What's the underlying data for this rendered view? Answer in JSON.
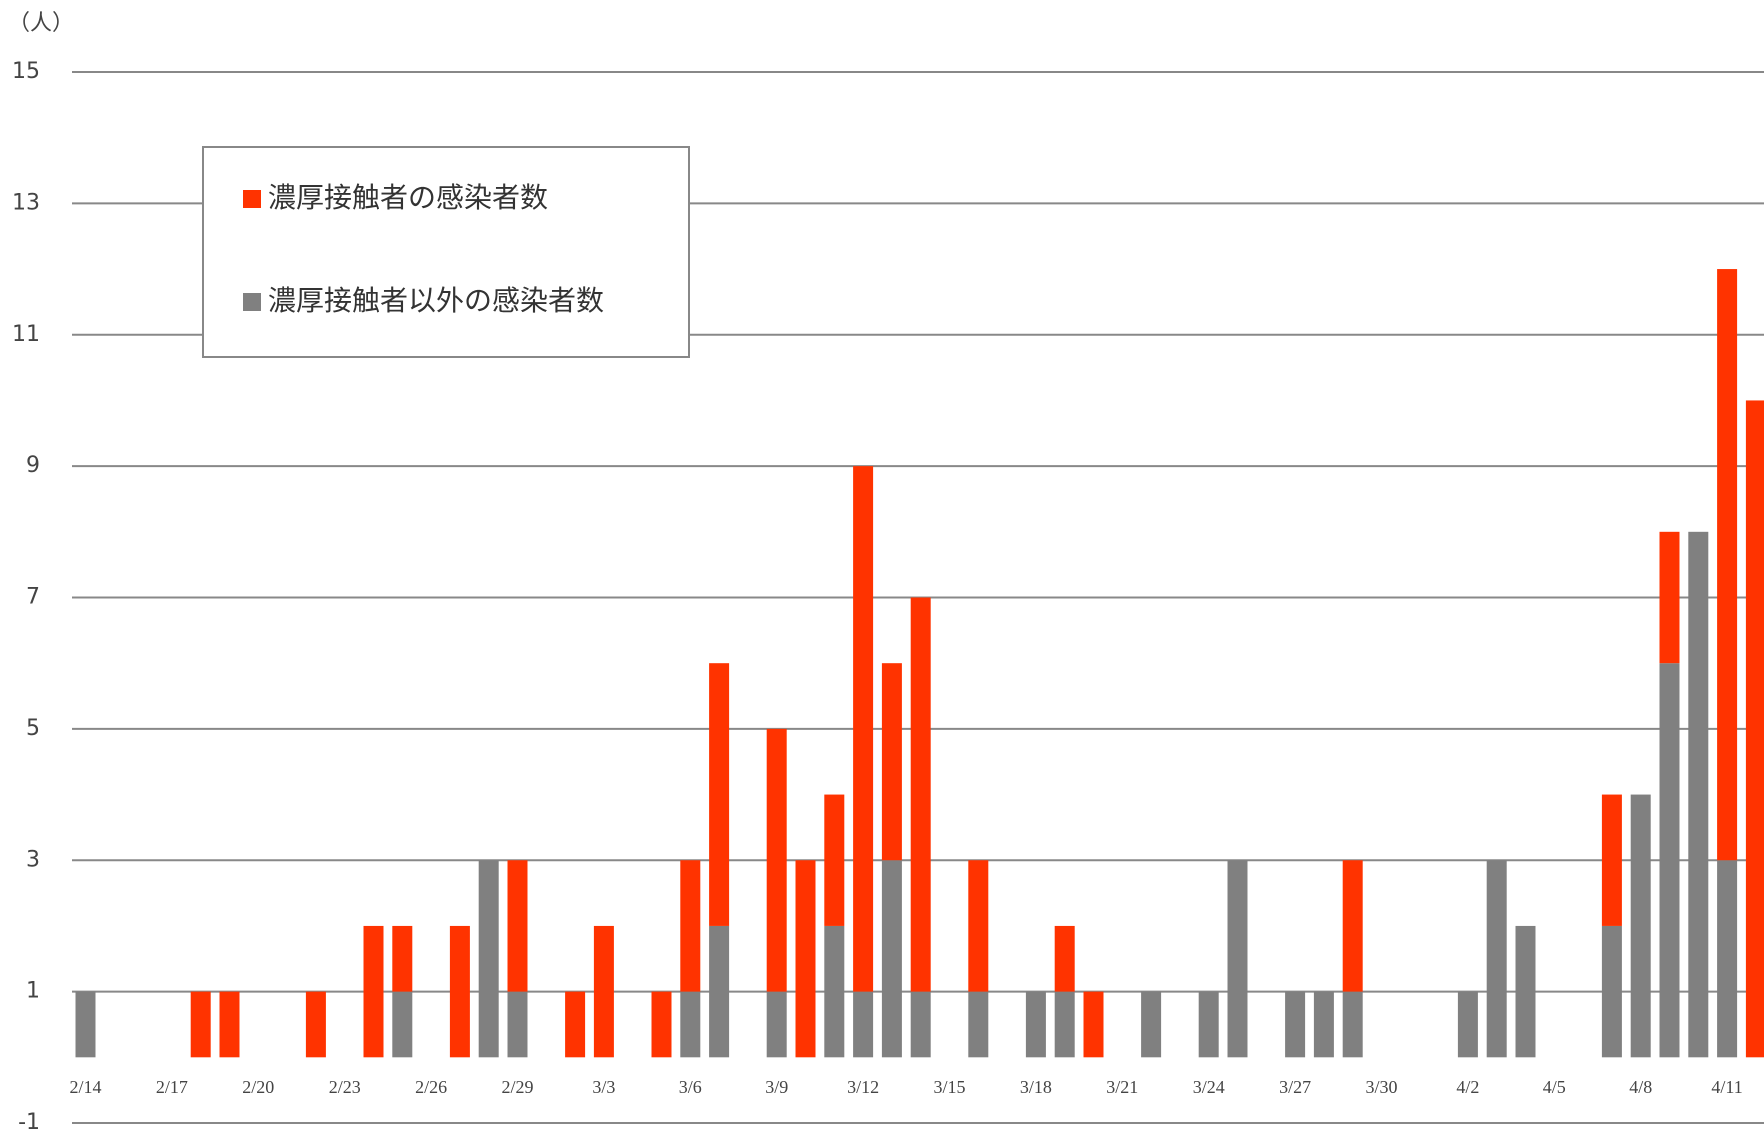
{
  "chart_data": {
    "type": "stacked_bar",
    "y_axis_label": "（人）",
    "categories": [
      "2/14",
      null,
      null,
      "2/17",
      null,
      null,
      "2/20",
      null,
      null,
      "2/23",
      null,
      null,
      "2/26",
      null,
      null,
      "2/29",
      null,
      null,
      "3/3",
      null,
      null,
      "3/6",
      null,
      null,
      "3/9",
      null,
      null,
      "3/12",
      null,
      null,
      "3/15",
      null,
      null,
      "3/18",
      null,
      null,
      "3/21",
      null,
      null,
      "3/24",
      null,
      null,
      "3/27",
      null,
      null,
      "3/30",
      null,
      null,
      "4/2",
      null,
      null,
      "4/5",
      null,
      null,
      "4/8",
      null,
      null,
      "4/11",
      null
    ],
    "series": [
      {
        "name": "濃厚接触者の感染者数",
        "color": "#ff3300",
        "values": [
          0,
          0,
          0,
          0,
          1,
          1,
          0,
          0,
          1,
          0,
          2,
          1,
          0,
          2,
          0,
          2,
          0,
          1,
          2,
          0,
          1,
          2,
          4,
          0,
          4,
          3,
          2,
          8,
          3,
          6,
          0,
          2,
          0,
          0,
          1,
          1,
          0,
          0,
          0,
          0,
          0,
          0,
          0,
          0,
          2,
          0,
          0,
          0,
          0,
          0,
          0,
          0,
          0,
          2,
          0,
          2,
          0,
          9,
          10
        ]
      },
      {
        "name": "濃厚接触者以外の感染者数",
        "color": "#808080",
        "values": [
          1,
          0,
          0,
          0,
          0,
          0,
          0,
          0,
          0,
          0,
          0,
          1,
          0,
          0,
          3,
          1,
          0,
          0,
          0,
          0,
          0,
          1,
          2,
          0,
          1,
          0,
          2,
          1,
          3,
          1,
          0,
          1,
          0,
          1,
          1,
          0,
          0,
          1,
          0,
          1,
          3,
          0,
          1,
          1,
          1,
          0,
          0,
          0,
          1,
          3,
          2,
          0,
          0,
          2,
          4,
          6,
          8,
          3,
          0
        ]
      }
    ],
    "ylim": [
      -1,
      15
    ],
    "yticks": [
      -1,
      1,
      3,
      5,
      7,
      9,
      11,
      13,
      15
    ],
    "grid": true
  }
}
